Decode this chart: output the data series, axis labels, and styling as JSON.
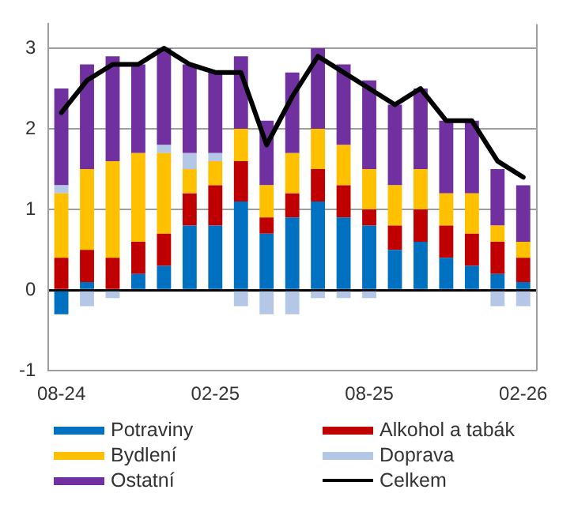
{
  "chart_data": {
    "type": "bar",
    "stacked": true,
    "categories": [
      "08-24",
      null,
      null,
      null,
      null,
      null,
      "02-25",
      null,
      null,
      null,
      null,
      null,
      "08-25",
      null,
      null,
      null,
      null,
      null,
      "02-26"
    ],
    "series": [
      {
        "name": "Potraviny",
        "color": "#0070c0",
        "values": [
          -0.3,
          0.1,
          0,
          0.2,
          0.3,
          0.8,
          0.8,
          1.1,
          0.7,
          0.9,
          1.1,
          0.9,
          0.8,
          0.5,
          0.6,
          0.4,
          0.3,
          0.2,
          0.1
        ]
      },
      {
        "name": "Alkohol a tabák",
        "color": "#c00000",
        "values": [
          0.4,
          0.4,
          0.4,
          0.4,
          0.4,
          0.4,
          0.5,
          0.5,
          0.2,
          0.3,
          0.4,
          0.4,
          0.2,
          0.3,
          0.4,
          0.4,
          0.4,
          0.4,
          0.3
        ]
      },
      {
        "name": "Bydlení",
        "color": "#ffc000",
        "values": [
          0.8,
          1.0,
          1.2,
          1.1,
          1.0,
          0.3,
          0.3,
          0.4,
          0.4,
          0.5,
          0.5,
          0.5,
          0.5,
          0.5,
          0.5,
          0.4,
          0.5,
          0.2,
          0.2
        ]
      },
      {
        "name": "Doprava",
        "color": "#b4c7e7",
        "values": [
          0.1,
          -0.2,
          -0.1,
          0,
          0.1,
          0.2,
          0.1,
          -0.2,
          -0.3,
          -0.3,
          -0.1,
          -0.1,
          -0.1,
          0,
          0,
          0,
          0,
          -0.2,
          -0.2
        ]
      },
      {
        "name": "Ostatní",
        "color": "#7030a0",
        "values": [
          1.2,
          1.3,
          1.3,
          1.1,
          1.2,
          1.1,
          1.0,
          0.9,
          0.8,
          1.0,
          1.0,
          1.0,
          1.1,
          1.0,
          1.0,
          0.9,
          0.9,
          0.7,
          0.7
        ]
      },
      {
        "name": "Celkem",
        "type": "line",
        "color": "#000000",
        "values": [
          2.2,
          2.6,
          2.8,
          2.8,
          3.0,
          2.8,
          2.7,
          2.7,
          1.8,
          2.4,
          2.9,
          2.7,
          2.5,
          2.3,
          2.5,
          2.1,
          2.1,
          1.6,
          1.4
        ]
      }
    ],
    "ylim": [
      -1,
      3.3
    ],
    "yticks": [
      -1,
      0,
      1,
      2,
      3
    ],
    "grid": "y",
    "legend": "bottom",
    "marker": "none"
  }
}
